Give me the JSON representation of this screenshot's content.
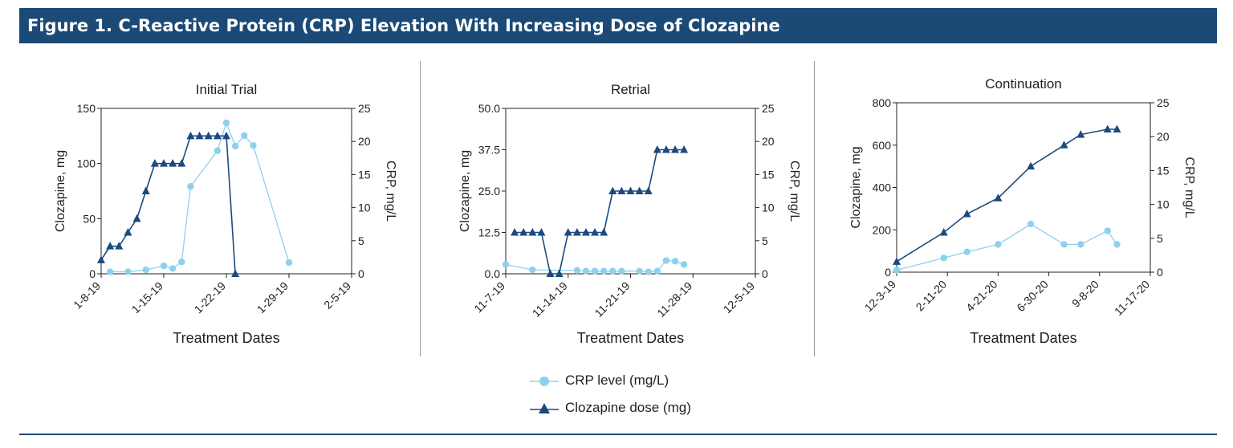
{
  "figure_title": "Figure 1. C-Reactive Protein (CRP) Elevation With Increasing Dose of Clozapine",
  "colors": {
    "banner": "#1b4a77",
    "crp": "#8fd0ef",
    "dose": "#1b4a7e",
    "axis": "#231f20",
    "divider": "#9a9a9a"
  },
  "legend": [
    {
      "label": "CRP level (mg/L)",
      "marker": "circle",
      "color": "#8fd0ef"
    },
    {
      "label": "Clozapine  dose (mg)",
      "marker": "triangle",
      "color": "#1b4a7e"
    }
  ],
  "chart_data": [
    {
      "type": "line",
      "title": "Initial Trial",
      "xlabel": "Treatment Dates",
      "ylabel": "Clozapine, mg",
      "y2label": "CRP, mg/L",
      "x_ticks": [
        "1-8-19",
        "1-15-19",
        "1-22-19",
        "1-29-19",
        "2-5-19"
      ],
      "xlim": [
        "2019-01-08",
        "2019-02-05"
      ],
      "ylim": [
        0,
        150
      ],
      "y_ticks": [
        0,
        50,
        100,
        150
      ],
      "y2lim": [
        0,
        25
      ],
      "y2_ticks": [
        0,
        5,
        10,
        15,
        20,
        25
      ],
      "series": [
        {
          "name": "Clozapine  dose (mg)",
          "axis": "left",
          "marker": "triangle",
          "x": [
            "2019-01-08",
            "2019-01-09",
            "2019-01-10",
            "2019-01-11",
            "2019-01-12",
            "2019-01-13",
            "2019-01-14",
            "2019-01-15",
            "2019-01-16",
            "2019-01-17",
            "2019-01-18",
            "2019-01-19",
            "2019-01-20",
            "2019-01-21",
            "2019-01-22",
            "2019-01-23"
          ],
          "y": [
            12.5,
            25,
            25,
            37.5,
            50,
            75,
            100,
            100,
            100,
            100,
            125,
            125,
            125,
            125,
            125,
            0
          ]
        },
        {
          "name": "CRP level (mg/L)",
          "axis": "right",
          "marker": "circle",
          "x": [
            "2019-01-09",
            "2019-01-11",
            "2019-01-13",
            "2019-01-15",
            "2019-01-16",
            "2019-01-17",
            "2019-01-18",
            "2019-01-21",
            "2019-01-22",
            "2019-01-23",
            "2019-01-24",
            "2019-01-25",
            "2019-01-29"
          ],
          "y": [
            0.3,
            0.3,
            0.6,
            1.2,
            0.8,
            1.8,
            13.2,
            18.6,
            22.8,
            19.3,
            20.9,
            19.4,
            1.7
          ]
        }
      ]
    },
    {
      "type": "line",
      "title": "Retrial",
      "xlabel": "Treatment Dates",
      "ylabel": "Clozapine, mg",
      "y2label": "CRP, mg/L",
      "x_ticks": [
        "11-7-19",
        "11-14-19",
        "11-21-19",
        "11-28-19",
        "12-5-19"
      ],
      "xlim": [
        "2019-11-07",
        "2019-12-05"
      ],
      "ylim": [
        0,
        50
      ],
      "y_ticks": [
        "0.0",
        "12.5",
        "25.0",
        "37.5",
        "50.0"
      ],
      "y2lim": [
        0,
        25
      ],
      "y2_ticks": [
        0,
        5,
        10,
        15,
        20,
        25
      ],
      "series": [
        {
          "name": "Clozapine  dose (mg)",
          "axis": "left",
          "marker": "triangle",
          "x": [
            "2019-11-08",
            "2019-11-09",
            "2019-11-10",
            "2019-11-11",
            "2019-11-12",
            "2019-11-13",
            "2019-11-14",
            "2019-11-15",
            "2019-11-16",
            "2019-11-17",
            "2019-11-18",
            "2019-11-19",
            "2019-11-20",
            "2019-11-21",
            "2019-11-22",
            "2019-11-23",
            "2019-11-24",
            "2019-11-25",
            "2019-11-26",
            "2019-11-27"
          ],
          "y": [
            12.5,
            12.5,
            12.5,
            12.5,
            0,
            0,
            12.5,
            12.5,
            12.5,
            12.5,
            12.5,
            25,
            25,
            25,
            25,
            25,
            37.5,
            37.5,
            37.5,
            37.5
          ]
        },
        {
          "name": "CRP level (mg/L)",
          "axis": "right",
          "marker": "circle",
          "x": [
            "2019-11-07",
            "2019-11-10",
            "2019-11-15",
            "2019-11-16",
            "2019-11-17",
            "2019-11-18",
            "2019-11-19",
            "2019-11-20",
            "2019-11-22",
            "2019-11-23",
            "2019-11-24",
            "2019-11-25",
            "2019-11-26",
            "2019-11-27"
          ],
          "y": [
            1.4,
            0.6,
            0.5,
            0.4,
            0.4,
            0.4,
            0.4,
            0.4,
            0.4,
            0.3,
            0.4,
            2.0,
            1.9,
            1.4
          ]
        }
      ]
    },
    {
      "type": "line",
      "title": "Continuation",
      "xlabel": "Treatment Dates",
      "ylabel": "Clozapine, mg",
      "y2label": "CRP, mg/L",
      "x_ticks": [
        "12-3-19",
        "2-11-20",
        "4-21-20",
        "6-30-20",
        "9-8-20",
        "11-17-20"
      ],
      "xlim": [
        "2019-12-03",
        "2020-11-17"
      ],
      "ylim": [
        0,
        800
      ],
      "y_ticks": [
        0,
        200,
        400,
        600,
        800
      ],
      "y2lim": [
        0,
        25
      ],
      "y2_ticks": [
        0,
        5,
        10,
        15,
        20,
        25
      ],
      "series": [
        {
          "name": "Clozapine  dose (mg)",
          "axis": "left",
          "marker": "triangle",
          "x": [
            "2019-12-03",
            "2020-02-06",
            "2020-03-09",
            "2020-04-21",
            "2020-06-05",
            "2020-07-21",
            "2020-08-13",
            "2020-09-19",
            "2020-10-02"
          ],
          "y": [
            50,
            187.5,
            275,
            350,
            500,
            600,
            650,
            675,
            675
          ]
        },
        {
          "name": "CRP level (mg/L)",
          "axis": "right",
          "marker": "circle",
          "x": [
            "2019-12-03",
            "2020-02-06",
            "2020-03-09",
            "2020-04-21",
            "2020-06-05",
            "2020-07-21",
            "2020-08-13",
            "2020-09-19",
            "2020-10-02"
          ],
          "y": [
            0.3,
            2.1,
            3.0,
            4.1,
            7.1,
            4.1,
            4.1,
            6.1,
            4.1
          ]
        }
      ]
    }
  ]
}
